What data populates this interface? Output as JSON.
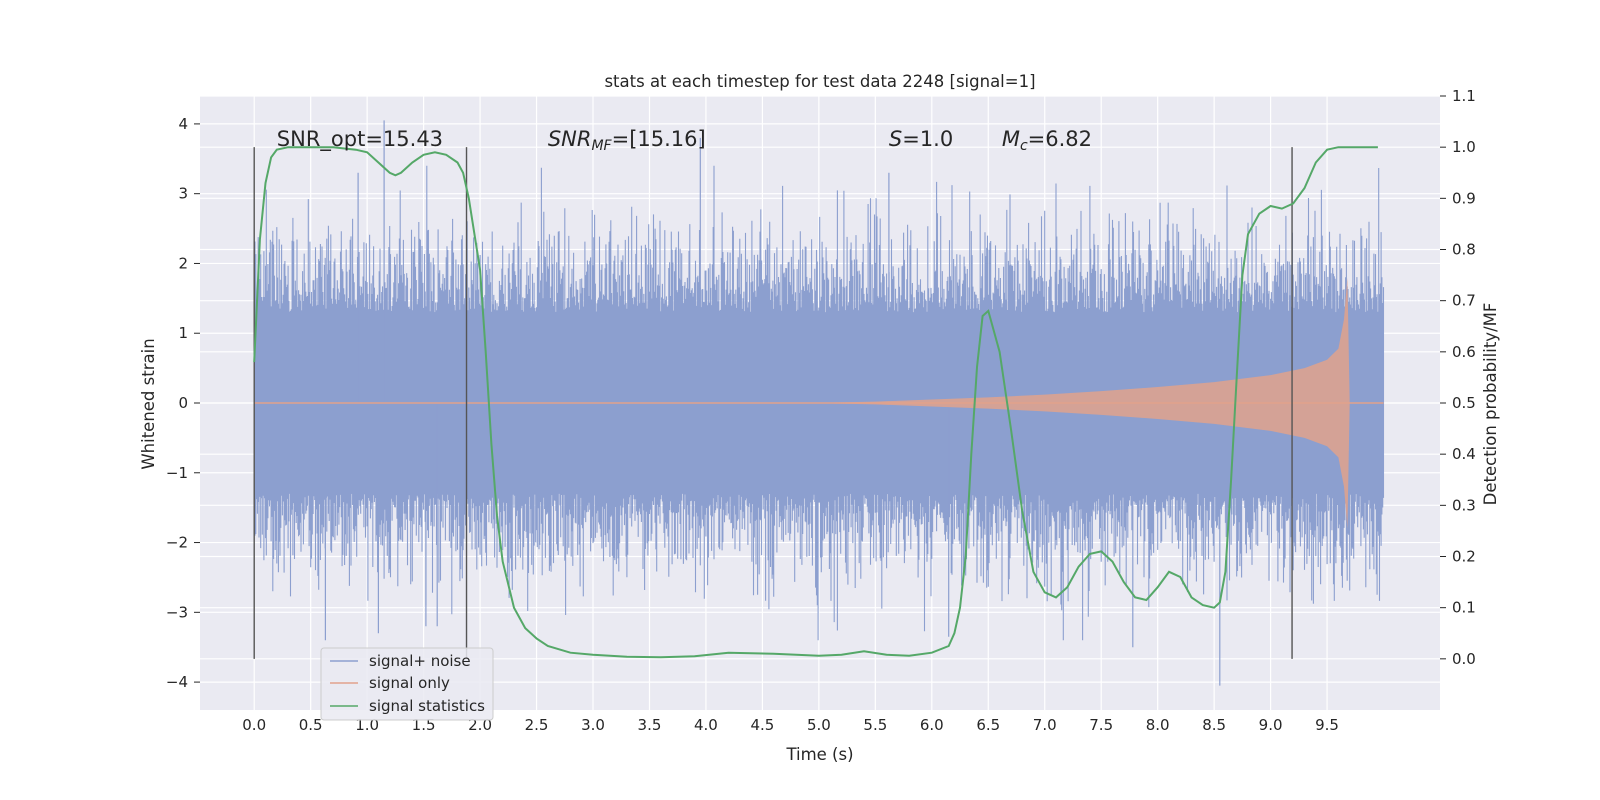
{
  "chart_data": {
    "type": "line",
    "title": "stats at each timestep for test data 2248 [signal=1]",
    "xlabel": "Time (s)",
    "ylabel": "Whitened strain",
    "y2label": "Detection probability/MF",
    "xlim": [
      -0.48,
      10.5
    ],
    "ylim": [
      -4.4,
      4.4
    ],
    "y2lim": [
      -0.1,
      1.1
    ],
    "xticks": [
      "0.0",
      "0.5",
      "1.0",
      "1.5",
      "2.0",
      "2.5",
      "3.0",
      "3.5",
      "4.0",
      "4.5",
      "5.0",
      "5.5",
      "6.0",
      "6.5",
      "7.0",
      "7.5",
      "8.0",
      "8.5",
      "9.0",
      "9.5"
    ],
    "yticks": [
      "4",
      "3",
      "2",
      "1",
      "0",
      "−1",
      "−2",
      "−3",
      "−4"
    ],
    "y2ticks": [
      "1.1",
      "1.0",
      "0.9",
      "0.8",
      "0.7",
      "0.6",
      "0.5",
      "0.4",
      "0.3",
      "0.2",
      "0.1",
      "0.0"
    ],
    "grid": true,
    "legend_position": "lower-left",
    "colors": {
      "noise": "#8c9fcf",
      "signal": "#e1a28c",
      "stats": "#55a868",
      "plot_bg": "#eaeaf2",
      "vline": "#555555"
    },
    "vlines_x": [
      0.0,
      1.88,
      9.19
    ],
    "annotations": [
      {
        "x": 0.2,
        "parts": [
          {
            "t": "SNR_opt=15.43",
            "i": false
          }
        ]
      },
      {
        "x": 2.6,
        "parts": [
          {
            "t": "SNR",
            "i": true
          },
          {
            "t": "MF",
            "i": true,
            "sub": true
          },
          {
            "t": "=[15.16]",
            "i": false
          }
        ]
      },
      {
        "x": 5.62,
        "parts": [
          {
            "t": "S",
            "i": true
          },
          {
            "t": "=1.0",
            "i": false
          }
        ]
      },
      {
        "x": 6.62,
        "parts": [
          {
            "t": "M",
            "i": true
          },
          {
            "t": "c",
            "i": true,
            "sub": true
          },
          {
            "t": "=6.82",
            "i": false
          }
        ]
      }
    ],
    "series": [
      {
        "name": "signal+ noise",
        "kind": "noise",
        "x_range": [
          0.0,
          10.0
        ],
        "core_amplitude": 1.3,
        "typical_peak": 2.4,
        "max_peak": 4.05,
        "min_peak": -4.05
      },
      {
        "name": "signal only",
        "kind": "chirp",
        "envelope": [
          [
            0.0,
            0.0
          ],
          [
            5.0,
            0.005
          ],
          [
            5.5,
            0.02
          ],
          [
            6.0,
            0.05
          ],
          [
            6.5,
            0.08
          ],
          [
            7.0,
            0.12
          ],
          [
            7.5,
            0.17
          ],
          [
            8.0,
            0.23
          ],
          [
            8.5,
            0.3
          ],
          [
            9.0,
            0.4
          ],
          [
            9.3,
            0.5
          ],
          [
            9.5,
            0.62
          ],
          [
            9.6,
            0.78
          ],
          [
            9.65,
            1.2
          ],
          [
            9.68,
            1.8
          ],
          [
            9.7,
            0.0
          ],
          [
            10.0,
            0.0
          ]
        ]
      },
      {
        "name": "signal statistics",
        "kind": "probability",
        "x": [
          0.0,
          0.05,
          0.1,
          0.15,
          0.2,
          0.3,
          0.5,
          0.7,
          0.9,
          1.0,
          1.1,
          1.2,
          1.25,
          1.3,
          1.4,
          1.5,
          1.6,
          1.7,
          1.8,
          1.85,
          1.9,
          2.0,
          2.05,
          2.1,
          2.15,
          2.2,
          2.3,
          2.4,
          2.5,
          2.6,
          2.8,
          3.0,
          3.3,
          3.6,
          3.9,
          4.2,
          4.6,
          5.0,
          5.2,
          5.4,
          5.6,
          5.8,
          6.0,
          6.15,
          6.2,
          6.25,
          6.3,
          6.35,
          6.4,
          6.45,
          6.5,
          6.6,
          6.7,
          6.8,
          6.9,
          7.0,
          7.1,
          7.2,
          7.3,
          7.4,
          7.5,
          7.6,
          7.7,
          7.8,
          7.9,
          8.0,
          8.1,
          8.2,
          8.3,
          8.4,
          8.5,
          8.55,
          8.6,
          8.65,
          8.7,
          8.75,
          8.8,
          8.9,
          9.0,
          9.1,
          9.2,
          9.3,
          9.4,
          9.5,
          9.6,
          9.7,
          9.8,
          9.9,
          9.95
        ],
        "values": [
          0.58,
          0.82,
          0.93,
          0.98,
          0.995,
          1.0,
          1.0,
          1.0,
          0.995,
          0.99,
          0.97,
          0.95,
          0.945,
          0.95,
          0.97,
          0.985,
          0.99,
          0.985,
          0.97,
          0.95,
          0.9,
          0.76,
          0.6,
          0.42,
          0.28,
          0.19,
          0.1,
          0.06,
          0.04,
          0.025,
          0.012,
          0.008,
          0.004,
          0.003,
          0.005,
          0.012,
          0.01,
          0.006,
          0.008,
          0.015,
          0.008,
          0.006,
          0.012,
          0.025,
          0.05,
          0.1,
          0.2,
          0.4,
          0.57,
          0.67,
          0.68,
          0.6,
          0.45,
          0.29,
          0.17,
          0.13,
          0.12,
          0.14,
          0.18,
          0.205,
          0.21,
          0.19,
          0.15,
          0.12,
          0.115,
          0.14,
          0.17,
          0.16,
          0.12,
          0.105,
          0.1,
          0.11,
          0.17,
          0.35,
          0.55,
          0.75,
          0.83,
          0.87,
          0.885,
          0.88,
          0.89,
          0.92,
          0.97,
          0.995,
          1.0,
          1.0,
          1.0,
          1.0,
          1.0
        ]
      }
    ]
  }
}
